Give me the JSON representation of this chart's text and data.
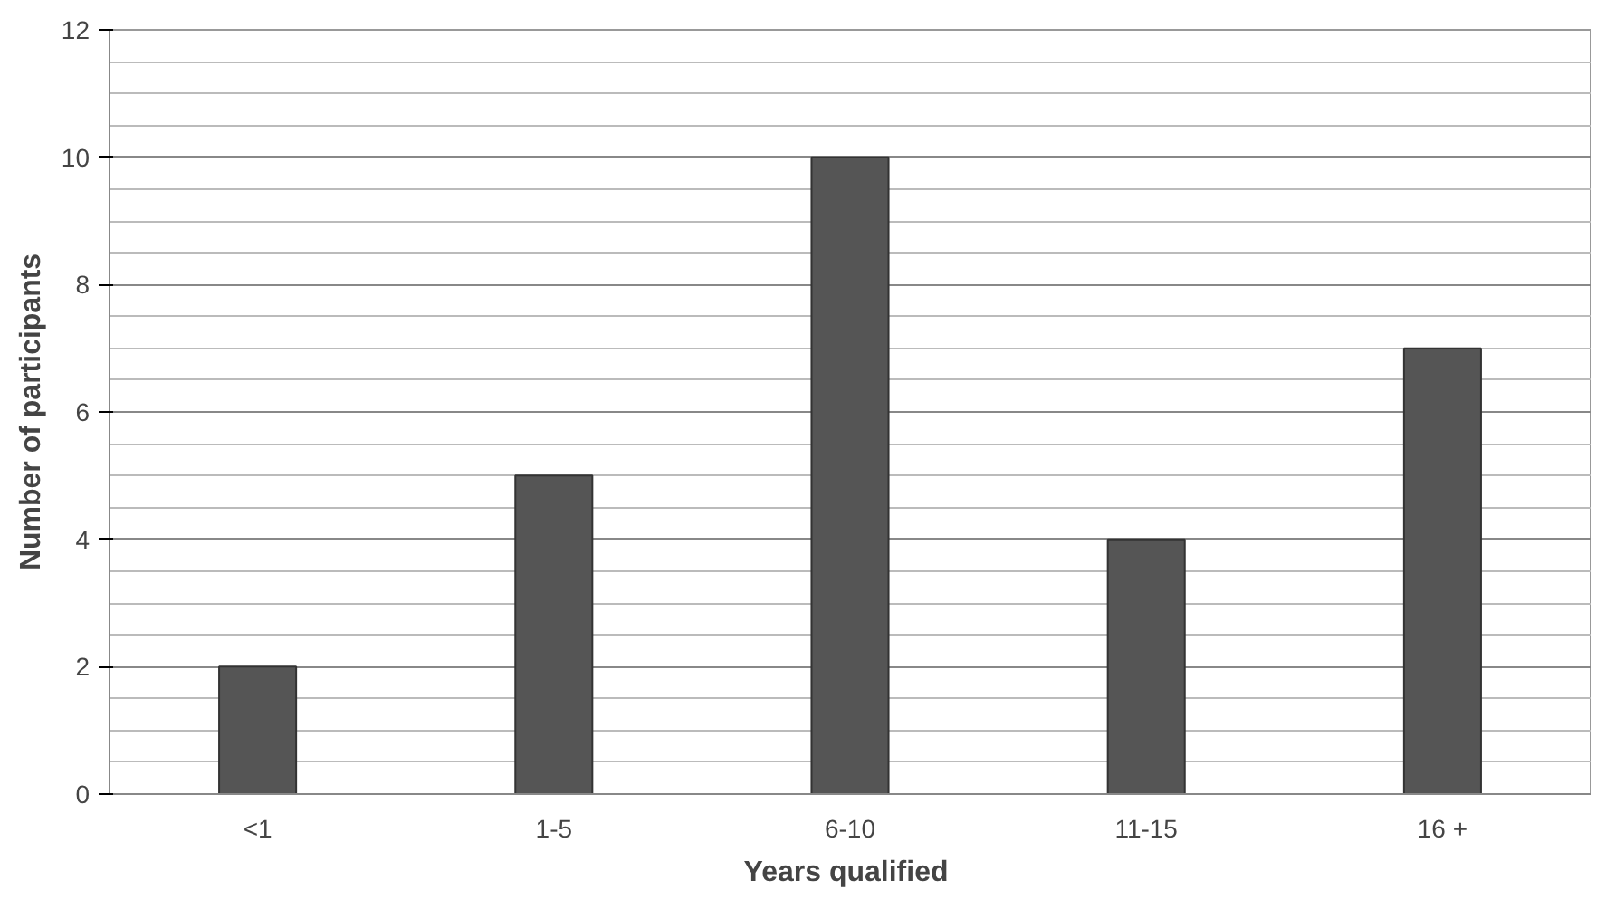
{
  "chart_data": {
    "type": "bar",
    "xlabel": "Years  qualified",
    "ylabel": "Number of participants",
    "categories": [
      "<1",
      "1-5",
      "6-10",
      "11-15",
      "16 +"
    ],
    "values": [
      2,
      5,
      10,
      4,
      7
    ],
    "color": "#555555",
    "ylim": [
      0,
      12
    ],
    "yticks": [
      0,
      2,
      4,
      6,
      8,
      10,
      12
    ],
    "grid": "y"
  }
}
